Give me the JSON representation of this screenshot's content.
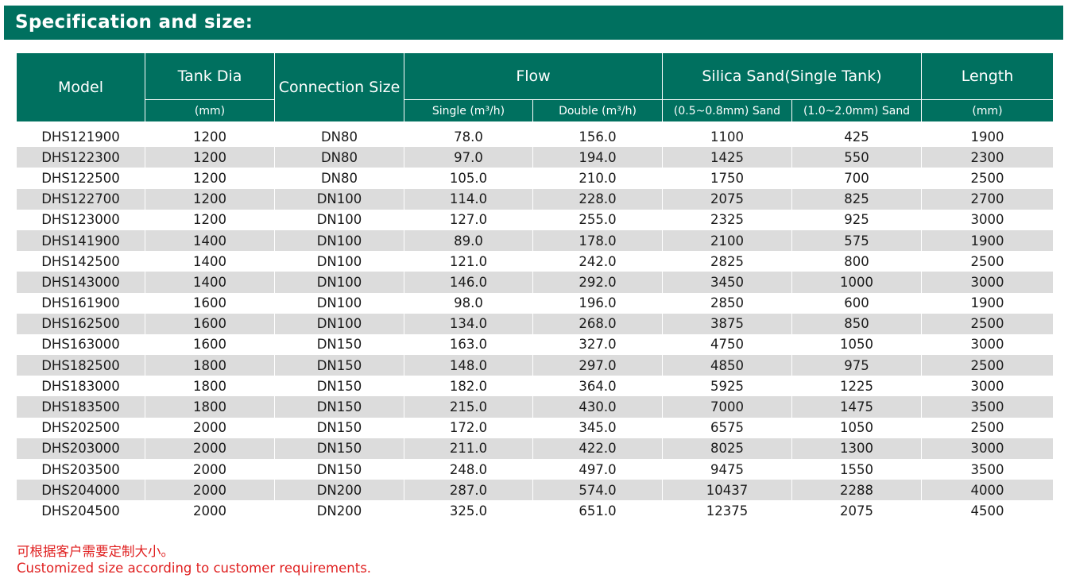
{
  "title": "Specification and size:",
  "headers": {
    "model": "Model",
    "tank_dia": "Tank Dia",
    "tank_dia_unit": "(mm)",
    "connection_size": "Connection Size",
    "flow": "Flow",
    "flow_single": "Single (m³/h)",
    "flow_double": "Double (m³/h)",
    "silica_sand": "Silica Sand(Single Tank)",
    "sand_a": "(0.5~0.8mm) Sand",
    "sand_b": "(1.0~2.0mm) Sand",
    "length": "Length",
    "length_unit": "(mm)"
  },
  "rows": [
    [
      "DHS121900",
      "1200",
      "DN80",
      "78.0",
      "156.0",
      "1100",
      "425",
      "1900"
    ],
    [
      "DHS122300",
      "1200",
      "DN80",
      "97.0",
      "194.0",
      "1425",
      "550",
      "2300"
    ],
    [
      "DHS122500",
      "1200",
      "DN80",
      "105.0",
      "210.0",
      "1750",
      "700",
      "2500"
    ],
    [
      "DHS122700",
      "1200",
      "DN100",
      "114.0",
      "228.0",
      "2075",
      "825",
      "2700"
    ],
    [
      "DHS123000",
      "1200",
      "DN100",
      "127.0",
      "255.0",
      "2325",
      "925",
      "3000"
    ],
    [
      "DHS141900",
      "1400",
      "DN100",
      "89.0",
      "178.0",
      "2100",
      "575",
      "1900"
    ],
    [
      "DHS142500",
      "1400",
      "DN100",
      "121.0",
      "242.0",
      "2825",
      "800",
      "2500"
    ],
    [
      "DHS143000",
      "1400",
      "DN100",
      "146.0",
      "292.0",
      "3450",
      "1000",
      "3000"
    ],
    [
      "DHS161900",
      "1600",
      "DN100",
      "98.0",
      "196.0",
      "2850",
      "600",
      "1900"
    ],
    [
      "DHS162500",
      "1600",
      "DN100",
      "134.0",
      "268.0",
      "3875",
      "850",
      "2500"
    ],
    [
      "DHS163000",
      "1600",
      "DN150",
      "163.0",
      "327.0",
      "4750",
      "1050",
      "3000"
    ],
    [
      "DHS182500",
      "1800",
      "DN150",
      "148.0",
      "297.0",
      "4850",
      "975",
      "2500"
    ],
    [
      "DHS183000",
      "1800",
      "DN150",
      "182.0",
      "364.0",
      "5925",
      "1225",
      "3000"
    ],
    [
      "DHS183500",
      "1800",
      "DN150",
      "215.0",
      "430.0",
      "7000",
      "1475",
      "3500"
    ],
    [
      "DHS202500",
      "2000",
      "DN150",
      "172.0",
      "345.0",
      "6575",
      "1050",
      "2500"
    ],
    [
      "DHS203000",
      "2000",
      "DN150",
      "211.0",
      "422.0",
      "8025",
      "1300",
      "3000"
    ],
    [
      "DHS203500",
      "2000",
      "DN150",
      "248.0",
      "497.0",
      "9475",
      "1550",
      "3500"
    ],
    [
      "DHS204000",
      "2000",
      "DN200",
      "287.0",
      "574.0",
      "10437",
      "2288",
      "4000"
    ],
    [
      "DHS204500",
      "2000",
      "DN200",
      "325.0",
      "651.0",
      "12375",
      "2075",
      "4500"
    ]
  ],
  "notes": {
    "chinese": "可根据客户需要定制大小。",
    "english": "Customized size according to customer requirements."
  }
}
